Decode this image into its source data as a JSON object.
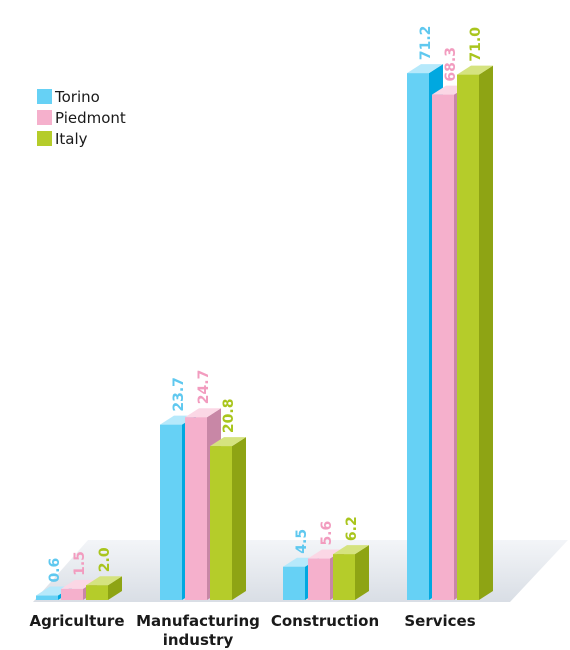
{
  "chart_data": {
    "type": "bar",
    "title": "",
    "xlabel": "",
    "ylabel": "",
    "ylim": [
      0,
      75
    ],
    "grid": false,
    "legend_position": "top-left",
    "categories": [
      [
        "Agriculture"
      ],
      [
        "Manufacturing",
        "industry"
      ],
      [
        "Construction"
      ],
      [
        "Services"
      ]
    ],
    "series": [
      {
        "name": "Torino",
        "values": [
          0.6,
          23.7,
          4.5,
          71.2
        ],
        "labels": [
          "0.6",
          "23.7",
          "4.5",
          "71.2"
        ]
      },
      {
        "name": "Piedmont",
        "values": [
          1.5,
          24.7,
          5.6,
          68.3
        ],
        "labels": [
          "1.5",
          "24.7",
          "5.6",
          "68.3"
        ]
      },
      {
        "name": "Italy",
        "values": [
          2.0,
          20.8,
          6.2,
          71.0
        ],
        "labels": [
          "2.0",
          "20.8",
          "6.2",
          "71.0"
        ]
      }
    ]
  },
  "colors": {
    "Torino": {
      "front": "#66d1f5",
      "side": "#00a8e0",
      "top": "#b6e9fb",
      "label": "#5fc8ef"
    },
    "Piedmont": {
      "front": "#f5b0cc",
      "side": "#c887a6",
      "top": "#fbd7e5",
      "label": "#f29cbf"
    },
    "Italy": {
      "front": "#b5cc2a",
      "side": "#8ea414",
      "top": "#d5e37f",
      "label": "#a9c51d"
    },
    "floor": "#e4e8ed"
  }
}
